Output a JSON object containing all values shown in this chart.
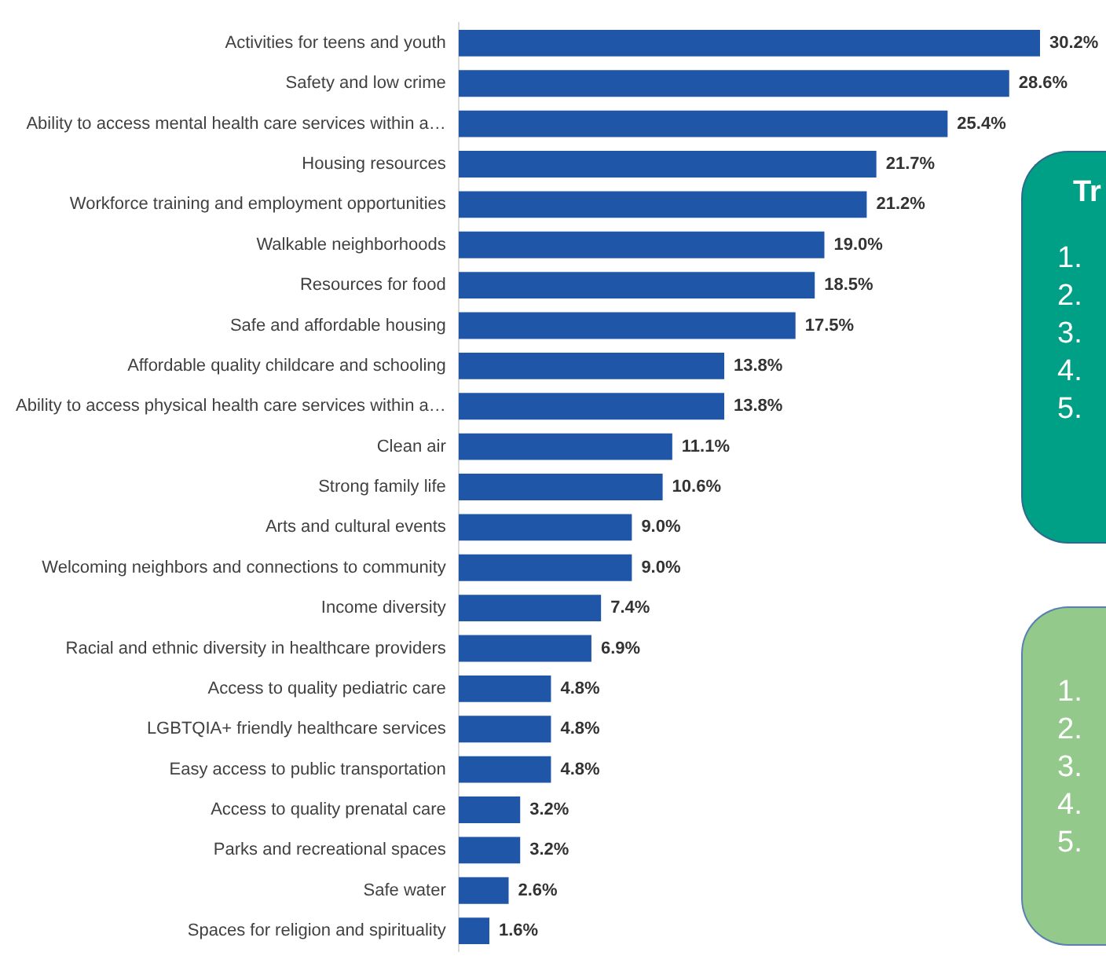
{
  "chart_data": {
    "type": "bar",
    "orientation": "horizontal",
    "categories": [
      "Activities for teens and youth",
      "Safety and low crime",
      "Ability to access mental health care services within a…",
      "Housing resources",
      "Workforce training and employment opportunities",
      "Walkable neighborhoods",
      "Resources for food",
      "Safe and affordable housing",
      "Affordable quality childcare and schooling",
      "Ability to access physical health care services within a…",
      "Clean air",
      "Strong family life",
      "Arts and cultural events",
      "Welcoming neighbors and connections to community",
      "Income diversity",
      "Racial and ethnic diversity in healthcare providers",
      "Access to quality pediatric care",
      "LGBTQIA+ friendly healthcare services",
      "Easy access to public transportation",
      "Access to quality prenatal care",
      "Parks and recreational spaces",
      "Safe water",
      "Spaces for religion and spirituality"
    ],
    "values": [
      30.2,
      28.6,
      25.4,
      21.7,
      21.2,
      19.0,
      18.5,
      17.5,
      13.8,
      13.8,
      11.1,
      10.6,
      9.0,
      9.0,
      7.4,
      6.9,
      4.8,
      4.8,
      4.8,
      3.2,
      3.2,
      2.6,
      1.6
    ],
    "value_labels": [
      "30.2%",
      "28.6%",
      "25.4%",
      "21.7%",
      "21.2%",
      "19.0%",
      "18.5%",
      "17.5%",
      "13.8%",
      "13.8%",
      "11.1%",
      "10.6%",
      "9.0%",
      "9.0%",
      "7.4%",
      "6.9%",
      "4.8%",
      "4.8%",
      "4.8%",
      "3.2%",
      "3.2%",
      "2.6%",
      "1.6%"
    ],
    "color": "#1f56a8",
    "legend": false,
    "annotations": [
      "Tr",
      "1.",
      "2.",
      "3.",
      "4.",
      "5.",
      "1.",
      "2.",
      "3.",
      "4.",
      "5."
    ]
  }
}
